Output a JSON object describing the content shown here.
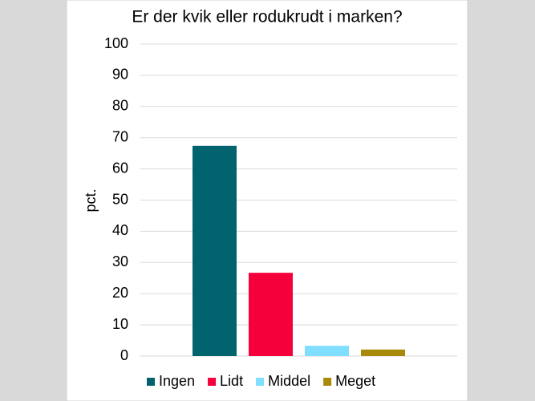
{
  "chart_data": {
    "type": "bar",
    "title": "Er der kvik eller rodukrudt i marken?",
    "y_label": "pct.",
    "categories": [
      null
    ],
    "series": [
      {
        "name": "Ingen",
        "color": "#00636e",
        "values": [
          67.4
        ]
      },
      {
        "name": "Lidt",
        "color": "#f5003a",
        "values": [
          26.7
        ]
      },
      {
        "name": "Middel",
        "color": "#80deff",
        "values": [
          3.3
        ]
      },
      {
        "name": "Meget",
        "color": "#a8890a",
        "values": [
          2.1
        ]
      }
    ],
    "ylim": [
      0,
      100
    ],
    "yticks": [
      0,
      10,
      20,
      30,
      40,
      50,
      60,
      70,
      80,
      90,
      100
    ],
    "grid": true,
    "legend": "bottom"
  }
}
